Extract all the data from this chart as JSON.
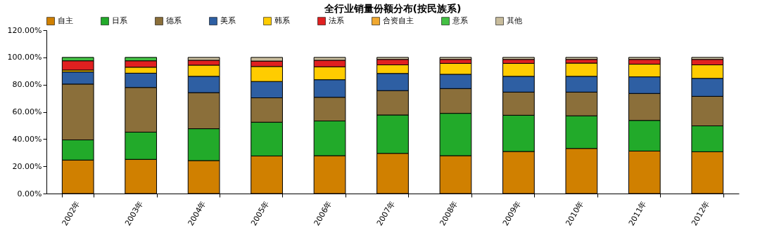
{
  "chart_data": {
    "type": "bar",
    "stacked": true,
    "title": "全行业销量份额分布(按民族系)",
    "categories": [
      "2002年",
      "2003年",
      "2004年",
      "2005年",
      "2006年",
      "2007年",
      "2008年",
      "2009年",
      "2010年",
      "2011年",
      "2012年"
    ],
    "series": [
      {
        "name": "自主",
        "color": "#d08000",
        "values": [
          24.6,
          25.1,
          24.2,
          27.6,
          27.8,
          29.5,
          27.8,
          30.9,
          33.1,
          31.2,
          30.7
        ]
      },
      {
        "name": "日系",
        "color": "#22aa2a",
        "values": [
          14.8,
          20.0,
          23.4,
          24.8,
          25.5,
          28.2,
          31.1,
          26.6,
          24.0,
          22.5,
          19.0
        ]
      },
      {
        "name": "德系",
        "color": "#8b6f3a",
        "values": [
          41.0,
          32.8,
          26.5,
          17.9,
          17.4,
          17.9,
          18.2,
          17.0,
          17.4,
          19.8,
          21.7
        ]
      },
      {
        "name": "美系",
        "color": "#2e5fa3",
        "values": [
          8.9,
          10.5,
          12.0,
          12.0,
          12.9,
          12.6,
          10.5,
          11.6,
          11.6,
          12.2,
          13.2
        ]
      },
      {
        "name": "韩系",
        "color": "#ffcc00",
        "values": [
          1.4,
          4.4,
          8.2,
          11.0,
          9.5,
          6.3,
          8.0,
          9.5,
          9.7,
          9.3,
          9.9
        ]
      },
      {
        "name": "法系",
        "color": "#e02020",
        "values": [
          6.8,
          4.7,
          3.6,
          4.0,
          4.8,
          4.0,
          2.9,
          2.9,
          2.7,
          3.5,
          4.0
        ]
      },
      {
        "name": "合资自主",
        "color": "#f0a830",
        "values": [
          null,
          null,
          null,
          null,
          null,
          null,
          null,
          null,
          null,
          null,
          null
        ]
      },
      {
        "name": "意系",
        "color": "#44c044",
        "values": [
          2.5,
          2.5,
          null,
          null,
          null,
          null,
          null,
          null,
          null,
          null,
          null
        ]
      },
      {
        "name": "其他",
        "color": "#c8bc9c",
        "values": [
          null,
          null,
          2.1,
          2.7,
          2.1,
          1.5,
          1.5,
          1.5,
          1.5,
          1.5,
          1.5
        ]
      }
    ],
    "ylim": [
      0,
      120
    ],
    "yticks": [
      {
        "value": 0,
        "label": "0.00%"
      },
      {
        "value": 20,
        "label": "20.00%"
      },
      {
        "value": 40,
        "label": "40.00%"
      },
      {
        "value": 60,
        "label": "60.00%"
      },
      {
        "value": 80,
        "label": "80.00%"
      },
      {
        "value": 100,
        "label": "100.00%"
      },
      {
        "value": 120,
        "label": "120.00%"
      }
    ],
    "grid": false,
    "legend": "top"
  }
}
